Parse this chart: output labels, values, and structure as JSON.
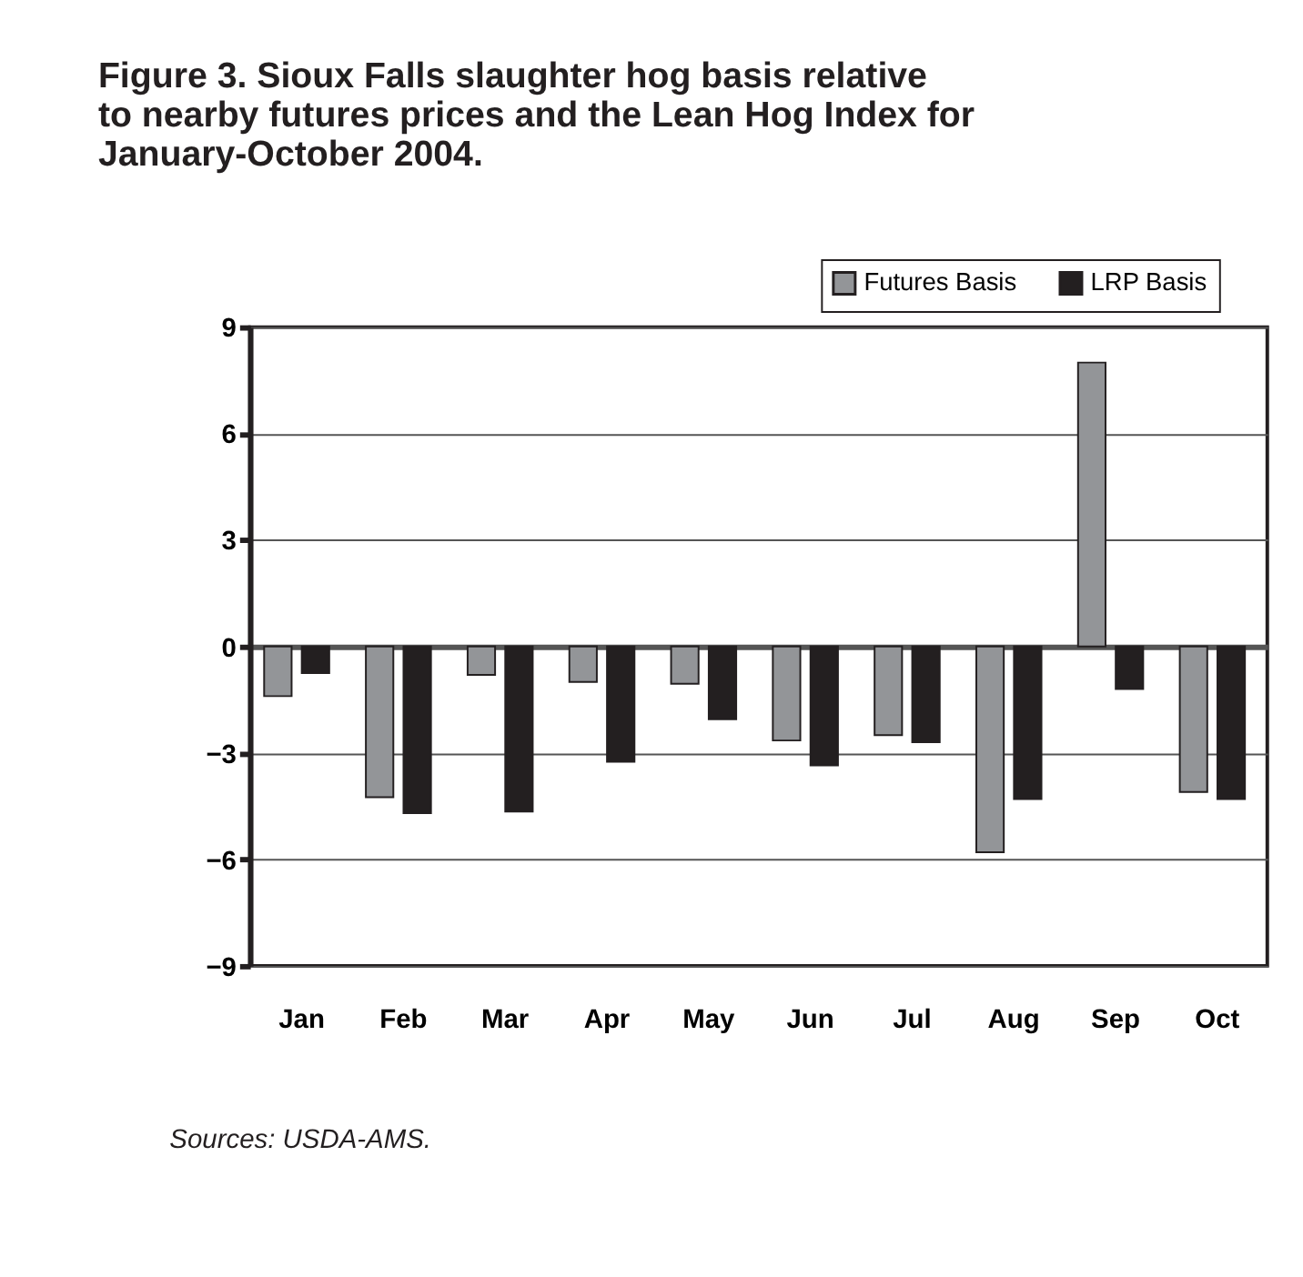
{
  "chart_data": {
    "type": "bar",
    "title": "Figure 3. Sioux Falls slaughter hog basis relative to nearby futures prices and the Lean Hog Index for January-October 2004.",
    "categories": [
      "Jan",
      "Feb",
      "Mar",
      "Apr",
      "May",
      "Jun",
      "Jul",
      "Aug",
      "Sep",
      "Oct"
    ],
    "series": [
      {
        "name": "Futures Basis",
        "color": "#939598",
        "values": [
          -1.4,
          -4.25,
          -0.8,
          -1.0,
          -1.05,
          -2.65,
          -2.5,
          -5.8,
          8.0,
          -4.1
        ]
      },
      {
        "name": "LRP Basis",
        "color": "#231f20",
        "values": [
          -0.75,
          -4.7,
          -4.65,
          -3.25,
          -2.05,
          -3.35,
          -2.7,
          -4.3,
          -1.2,
          -4.3
        ]
      }
    ],
    "ylim": [
      -9,
      9
    ],
    "yticks": [
      -9,
      -6,
      -3,
      0,
      3,
      6,
      9
    ],
    "grid": "y",
    "legend": "top right",
    "annotations": [
      "Sources: USDA-AMS."
    ]
  }
}
